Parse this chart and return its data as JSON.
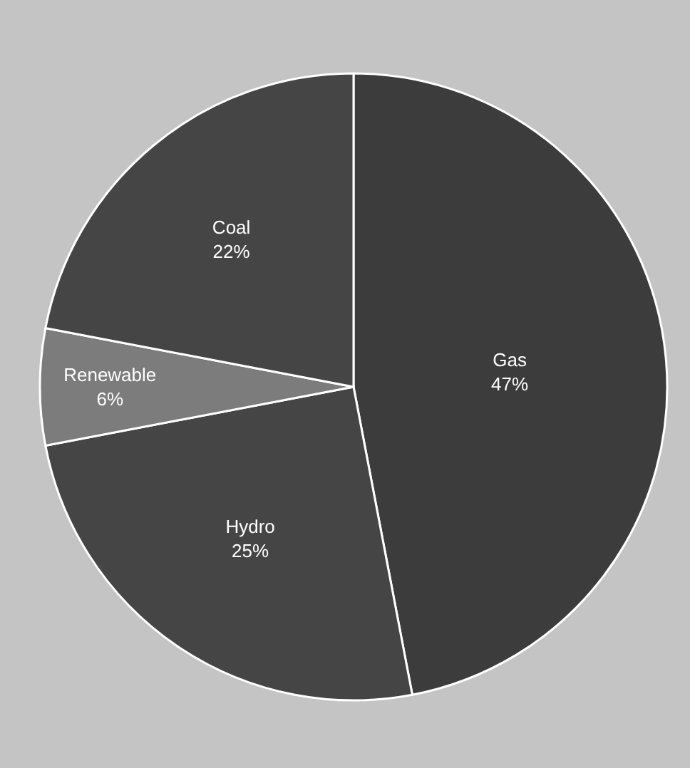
{
  "chart_data": {
    "type": "pie",
    "categories": [
      "Gas",
      "Hydro",
      "Renewable",
      "Coal"
    ],
    "values": [
      47,
      25,
      6,
      22
    ],
    "value_labels": [
      "47%",
      "25%",
      "6%",
      "22%"
    ],
    "colors": [
      "#3c3c3c",
      "#454545",
      "#7c7c7c",
      "#454545"
    ],
    "legend": false
  }
}
